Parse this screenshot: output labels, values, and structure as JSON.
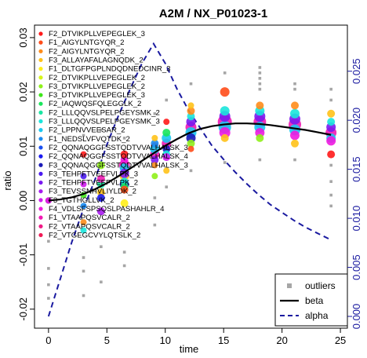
{
  "chart_data": {
    "type": "scatter",
    "title": "A2M  /  NX_P01023-1",
    "xlabel": "time",
    "ylabel": "ratio",
    "xlim": [
      -1.2,
      25.6
    ],
    "ylim": [
      -0.0235,
      0.0323
    ],
    "y2lim": [
      -0.0012,
      0.0297
    ],
    "xticks": [
      0,
      5,
      10,
      15,
      20,
      25
    ],
    "yticks": [
      -0.02,
      -0.01,
      0.0,
      0.01,
      0.02,
      0.03
    ],
    "y2ticks": [
      0.0,
      0.005,
      0.01,
      0.015,
      0.02,
      0.025
    ],
    "ytick_labels": [
      "-0.02",
      "-0.01",
      "0.00",
      "0.01",
      "0.02",
      "0.03"
    ],
    "xtick_labels": [
      "0",
      "5",
      "10",
      "15",
      "20",
      "25"
    ],
    "y2tick_labels": [
      "0.000",
      "0.005",
      "0.010",
      "0.015",
      "0.020",
      "0.025"
    ],
    "peptides": [
      {
        "name": "F2_DTVIKPLLVEPEGLEK_3",
        "color": "#ff1a1a"
      },
      {
        "name": "F1_AIGYLNTGYQR_2",
        "color": "#ff4d1a"
      },
      {
        "name": "F2_AIGYLNTGYQR_2",
        "color": "#ff8c1a"
      },
      {
        "name": "F3_ALLAYAFALAGNQDK_2",
        "color": "#ffc21a"
      },
      {
        "name": "F1_DLTGFPGPLNDQDNEDCINR_3",
        "color": "#ffee1a"
      },
      {
        "name": "F2_DTVIKPLLVEPEGLEK_2",
        "color": "#d6f51a"
      },
      {
        "name": "F3_DTVIKPLLVEPEGLEK_2",
        "color": "#8ff01a"
      },
      {
        "name": "F3_DTVIKPLLVEPEGLEK_3",
        "color": "#3ee61a"
      },
      {
        "name": "F2_IAQWQSFQLEGGLK_2",
        "color": "#1ae65c"
      },
      {
        "name": "F2_LLLQQVSLPELPGEYSMK_2",
        "color": "#1ae6a3"
      },
      {
        "name": "F3_LLLQQVSLPELPGEYSMK_3",
        "color": "#1ae6dc"
      },
      {
        "name": "F2_LPPNVVEESAR_2",
        "color": "#1ac8f0"
      },
      {
        "name": "F1_NEDSLVFVQTDK_2",
        "color": "#1a8cf0"
      },
      {
        "name": "F2_QQNAQGGFSSTQDTVVALHALSK_3",
        "color": "#1a50f0"
      },
      {
        "name": "F2_QQNAQGGFSSTQDTVVALHALSK_4",
        "color": "#1a1af0"
      },
      {
        "name": "F3_QQNAQGGFSSTQDTVVALHALSK_3",
        "color": "#1a1ab8"
      },
      {
        "name": "F3_TEHPFTVEEFVLPK_3",
        "color": "#4a1af0"
      },
      {
        "name": "F2_TEHPFTVEEFVLPK_2",
        "color": "#7a1af0"
      },
      {
        "name": "F3_TEVSSNHVLIYLDK_2",
        "color": "#a81af0"
      },
      {
        "name": "F3_TGTHGLLVK_2",
        "color": "#d21af0"
      },
      {
        "name": "F4_VDLSFSPSQSLPASHAHLR_4",
        "color": "#f01ae0"
      },
      {
        "name": "F1_VTAAPQSVCALR_2",
        "color": "#f01ab4"
      },
      {
        "name": "F2_VTAAPQSVCALR_2",
        "color": "#f01a86"
      },
      {
        "name": "F2_VTGEGCVYLQTSLK_2",
        "color": "#f01a56"
      }
    ],
    "points": [
      {
        "x": 0,
        "y": 0.0,
        "p": 0,
        "s": 4
      },
      {
        "x": 0,
        "y": 0.0,
        "p": 13,
        "s": 4
      },
      {
        "x": 0,
        "y": 0.0,
        "p": 20,
        "s": 4
      },
      {
        "x": 3,
        "y": 0.001,
        "p": 7,
        "s": 4
      },
      {
        "x": 3,
        "y": -0.001,
        "p": 12,
        "s": 4
      },
      {
        "x": 3,
        "y": 0.003,
        "p": 19,
        "s": 4
      },
      {
        "x": 3,
        "y": -0.004,
        "p": 2,
        "s": 4
      },
      {
        "x": 3,
        "y": 0.0045,
        "p": 16,
        "s": 4
      },
      {
        "x": 3,
        "y": -0.0055,
        "p": 10,
        "s": 4
      },
      {
        "x": 3,
        "y": 0.0085,
        "p": 0,
        "s": 4
      },
      {
        "x": 4.5,
        "y": 0.0015,
        "p": 3,
        "s": 5
      },
      {
        "x": 4.5,
        "y": 0.003,
        "p": 9,
        "s": 5
      },
      {
        "x": 4.5,
        "y": 0.004,
        "p": 21,
        "s": 5
      },
      {
        "x": 4.5,
        "y": 0.0005,
        "p": 14,
        "s": 5
      },
      {
        "x": 4.5,
        "y": 0.0065,
        "p": 6,
        "s": 5
      },
      {
        "x": 4.5,
        "y": -0.002,
        "p": 18,
        "s": 5
      },
      {
        "x": 6.5,
        "y": 0.0045,
        "p": 3,
        "s": 6
      },
      {
        "x": 6.5,
        "y": 0.0065,
        "p": 21,
        "s": 7
      },
      {
        "x": 6.5,
        "y": 0.006,
        "p": 11,
        "s": 6
      },
      {
        "x": 6.5,
        "y": 0.005,
        "p": 17,
        "s": 6
      },
      {
        "x": 6.5,
        "y": 0.003,
        "p": 15,
        "s": 6
      },
      {
        "x": 6.5,
        "y": 0.0035,
        "p": 10,
        "s": 5
      },
      {
        "x": 6.5,
        "y": 0.0025,
        "p": 8,
        "s": 5
      },
      {
        "x": 6.5,
        "y": 0.002,
        "p": 1,
        "s": 5
      },
      {
        "x": 6.5,
        "y": 0.0075,
        "p": 20,
        "s": 5
      },
      {
        "x": 6.5,
        "y": 0.0085,
        "p": 0,
        "s": 5
      },
      {
        "x": 6.5,
        "y": -0.0005,
        "p": 4,
        "s": 5
      },
      {
        "x": 9.1,
        "y": 0.0085,
        "p": 21,
        "s": 6
      },
      {
        "x": 9.1,
        "y": 0.01,
        "p": 23,
        "s": 5
      },
      {
        "x": 9.1,
        "y": 0.0095,
        "p": 11,
        "s": 6
      },
      {
        "x": 9.1,
        "y": 0.0105,
        "p": 12,
        "s": 5
      },
      {
        "x": 9.1,
        "y": 0.0075,
        "p": 17,
        "s": 5
      },
      {
        "x": 9.1,
        "y": 0.0065,
        "p": 2,
        "s": 4
      },
      {
        "x": 9.1,
        "y": 0.0115,
        "p": 3,
        "s": 4
      },
      {
        "x": 9.1,
        "y": 0.0045,
        "p": 6,
        "s": 4
      },
      {
        "x": 10.1,
        "y": 0.0105,
        "p": 21,
        "s": 6
      },
      {
        "x": 10.1,
        "y": 0.0115,
        "p": 11,
        "s": 6
      },
      {
        "x": 10.1,
        "y": 0.0095,
        "p": 15,
        "s": 5
      },
      {
        "x": 10.1,
        "y": 0.0085,
        "p": 10,
        "s": 5
      },
      {
        "x": 10.1,
        "y": 0.0125,
        "p": 8,
        "s": 5
      },
      {
        "x": 10.1,
        "y": 0.0145,
        "p": 0,
        "s": 4
      },
      {
        "x": 10.1,
        "y": 0.0055,
        "p": 3,
        "s": 4
      },
      {
        "x": 10.1,
        "y": 0.008,
        "p": 19,
        "s": 5
      },
      {
        "x": 12.2,
        "y": 0.0135,
        "p": 21,
        "s": 7
      },
      {
        "x": 12.2,
        "y": 0.0125,
        "p": 11,
        "s": 7
      },
      {
        "x": 12.2,
        "y": 0.0145,
        "p": 17,
        "s": 6
      },
      {
        "x": 12.2,
        "y": 0.0115,
        "p": 15,
        "s": 6
      },
      {
        "x": 12.2,
        "y": 0.0155,
        "p": 10,
        "s": 5
      },
      {
        "x": 12.2,
        "y": 0.0165,
        "p": 2,
        "s": 5
      },
      {
        "x": 12.2,
        "y": 0.0105,
        "p": 6,
        "s": 5
      },
      {
        "x": 12.2,
        "y": 0.0175,
        "p": 3,
        "s": 4
      },
      {
        "x": 12.2,
        "y": 0.0095,
        "p": 1,
        "s": 4
      },
      {
        "x": 15.1,
        "y": 0.0145,
        "p": 21,
        "s": 9
      },
      {
        "x": 15.1,
        "y": 0.0135,
        "p": 11,
        "s": 8
      },
      {
        "x": 15.1,
        "y": 0.0155,
        "p": 17,
        "s": 7
      },
      {
        "x": 15.1,
        "y": 0.0125,
        "p": 20,
        "s": 7
      },
      {
        "x": 15.1,
        "y": 0.0165,
        "p": 10,
        "s": 6
      },
      {
        "x": 15.1,
        "y": 0.02,
        "p": 1,
        "s": 6
      },
      {
        "x": 15.1,
        "y": 0.0115,
        "p": 3,
        "s": 5
      },
      {
        "x": 18.1,
        "y": 0.0145,
        "p": 21,
        "s": 8
      },
      {
        "x": 18.1,
        "y": 0.0135,
        "p": 11,
        "s": 7
      },
      {
        "x": 18.1,
        "y": 0.0155,
        "p": 17,
        "s": 7
      },
      {
        "x": 18.1,
        "y": 0.0125,
        "p": 20,
        "s": 6
      },
      {
        "x": 18.1,
        "y": 0.0165,
        "p": 10,
        "s": 6
      },
      {
        "x": 18.1,
        "y": 0.0175,
        "p": 2,
        "s": 5
      },
      {
        "x": 18.1,
        "y": 0.0115,
        "p": 6,
        "s": 5
      },
      {
        "x": 21.1,
        "y": 0.014,
        "p": 21,
        "s": 8
      },
      {
        "x": 21.1,
        "y": 0.013,
        "p": 11,
        "s": 7
      },
      {
        "x": 21.1,
        "y": 0.015,
        "p": 17,
        "s": 7
      },
      {
        "x": 21.1,
        "y": 0.012,
        "p": 20,
        "s": 6
      },
      {
        "x": 21.1,
        "y": 0.016,
        "p": 10,
        "s": 6
      },
      {
        "x": 21.1,
        "y": 0.0175,
        "p": 2,
        "s": 5
      },
      {
        "x": 21.1,
        "y": 0.0105,
        "p": 3,
        "s": 5
      },
      {
        "x": 24.2,
        "y": 0.0125,
        "p": 21,
        "s": 7
      },
      {
        "x": 24.2,
        "y": 0.0115,
        "p": 11,
        "s": 6
      },
      {
        "x": 24.2,
        "y": 0.0135,
        "p": 17,
        "s": 6
      },
      {
        "x": 24.2,
        "y": 0.011,
        "p": 20,
        "s": 6
      },
      {
        "x": 24.2,
        "y": 0.0145,
        "p": 10,
        "s": 5
      },
      {
        "x": 24.2,
        "y": 0.0085,
        "p": 0,
        "s": 5
      },
      {
        "x": 24.2,
        "y": 0.016,
        "p": 3,
        "s": 5
      }
    ],
    "outliers": [
      {
        "x": 0,
        "y": -0.0075
      },
      {
        "x": 0,
        "y": -0.0125
      },
      {
        "x": 0,
        "y": -0.0155
      },
      {
        "x": 0,
        "y": -0.018
      },
      {
        "x": 3,
        "y": -0.0105
      },
      {
        "x": 3,
        "y": -0.013
      },
      {
        "x": 3,
        "y": -0.0175
      },
      {
        "x": 3,
        "y": 0.012
      },
      {
        "x": 4.5,
        "y": -0.0085
      },
      {
        "x": 4.5,
        "y": -0.015
      },
      {
        "x": 4.5,
        "y": 0.013
      },
      {
        "x": 6.5,
        "y": -0.0095
      },
      {
        "x": 6.5,
        "y": -0.012
      },
      {
        "x": 6.5,
        "y": 0.0115
      },
      {
        "x": 9.1,
        "y": 0.0005
      },
      {
        "x": 9.1,
        "y": -0.0045
      },
      {
        "x": 9.1,
        "y": 0.016
      },
      {
        "x": 10.1,
        "y": 0.0025
      },
      {
        "x": 10.1,
        "y": 0.0185
      },
      {
        "x": 12.2,
        "y": 0.0055
      },
      {
        "x": 12.2,
        "y": 0.0215
      },
      {
        "x": 15.1,
        "y": 0.007
      },
      {
        "x": 15.1,
        "y": 0.0235
      },
      {
        "x": 18.1,
        "y": 0.0245
      },
      {
        "x": 18.1,
        "y": 0.0235
      },
      {
        "x": 18.1,
        "y": 0.0225
      },
      {
        "x": 18.1,
        "y": 0.0215
      },
      {
        "x": 18.1,
        "y": 0.0205
      },
      {
        "x": 18.1,
        "y": 0.0075
      },
      {
        "x": 21.1,
        "y": 0.0215
      },
      {
        "x": 21.1,
        "y": 0.0205
      },
      {
        "x": 21.1,
        "y": 0.0075
      },
      {
        "x": 24.2,
        "y": 0.0205
      },
      {
        "x": 24.2,
        "y": 0.0185
      },
      {
        "x": 24.2,
        "y": 0.0065
      },
      {
        "x": 24.2,
        "y": 0.0035
      },
      {
        "x": 24.2,
        "y": 0.001
      },
      {
        "x": 24.2,
        "y": -0.001
      }
    ],
    "beta": {
      "x": [
        0,
        1,
        2,
        3,
        4,
        5,
        6,
        7,
        8,
        9,
        10,
        11,
        12,
        13,
        14,
        15,
        16,
        17,
        18,
        19,
        20,
        21,
        22,
        23,
        24.2
      ],
      "y": [
        0.0,
        0.0002,
        0.0006,
        0.0012,
        0.0021,
        0.0032,
        0.0045,
        0.0059,
        0.0073,
        0.0087,
        0.0101,
        0.0113,
        0.0124,
        0.0132,
        0.0137,
        0.014,
        0.0142,
        0.0142,
        0.0141,
        0.0139,
        0.0136,
        0.0133,
        0.013,
        0.0126,
        0.0121
      ]
    },
    "alpha": {
      "x": [
        0,
        1,
        2,
        3,
        4,
        5,
        6,
        7,
        8,
        9,
        10,
        11,
        12,
        13,
        14,
        15,
        16,
        17,
        18,
        19,
        20,
        21,
        22,
        23,
        24.2
      ],
      "y": [
        0.0,
        0.0038,
        0.0076,
        0.011,
        0.014,
        0.0175,
        0.0205,
        0.0232,
        0.0258,
        0.0278,
        0.0258,
        0.0232,
        0.021,
        0.0192,
        0.0174,
        0.016,
        0.0147,
        0.0135,
        0.0124,
        0.0114,
        0.0106,
        0.0098,
        0.0091,
        0.0085,
        0.0078
      ]
    },
    "legend_bottom": [
      {
        "label": "outliers",
        "kind": "square",
        "color": "#a6a6a6"
      },
      {
        "label": "beta",
        "kind": "line",
        "color": "#000000"
      },
      {
        "label": "alpha",
        "kind": "dash",
        "color": "#1a1aa0"
      }
    ]
  }
}
